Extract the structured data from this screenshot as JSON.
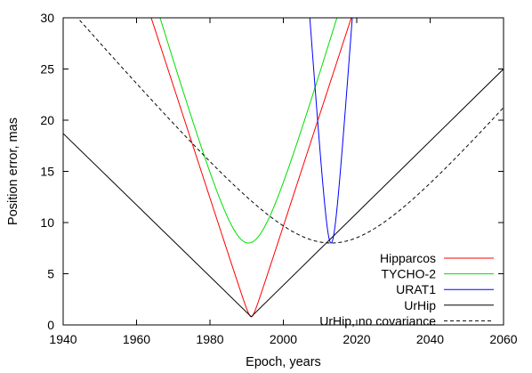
{
  "chart_data": {
    "type": "line",
    "xlabel": "Epoch, years",
    "ylabel": "Position error, mas",
    "xlim": [
      1940,
      2060
    ],
    "ylim": [
      0,
      30
    ],
    "x_ticks": [
      "1940",
      "1960",
      "1980",
      "2000",
      "2020",
      "2040",
      "2060"
    ],
    "y_ticks": [
      "0",
      "5",
      "10",
      "15",
      "20",
      "25",
      "30"
    ],
    "grid": false,
    "legend_position": "bottom-right",
    "series": [
      {
        "name": "Hipparcos",
        "color": "#ff0000",
        "dash": "solid",
        "epoch": 1991.25,
        "sigma0": 0.8,
        "rate": 1.1
      },
      {
        "name": "TYCHO-2",
        "color": "#00dd00",
        "dash": "solid",
        "epoch": 1990.5,
        "sigma0": 8.0,
        "rate": 1.2
      },
      {
        "name": "URAT1",
        "color": "#0000ff",
        "dash": "solid",
        "epoch": 2013.0,
        "sigma0": 8.0,
        "rate": 5.0
      },
      {
        "name": "UrHip",
        "color": "#000000",
        "dash": "solid",
        "points": [
          [
            1940,
            18.7
          ],
          [
            1991.25,
            0.8
          ],
          [
            2060,
            25.0
          ]
        ]
      },
      {
        "name": "UrHip, no covariance",
        "color": "#000000",
        "dash": "dashed",
        "epoch": 2013.0,
        "sigma0": 8.0,
        "rate": 0.4186
      }
    ]
  }
}
